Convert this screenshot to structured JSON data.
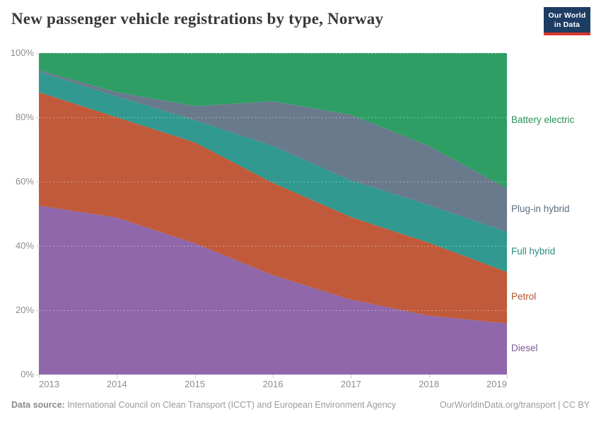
{
  "header": {
    "title": "New passenger vehicle registrations by type, Norway",
    "logo": {
      "line1": "Our World",
      "line2": "in Data",
      "bg_color": "#1d3d63",
      "bar_color": "#d8352b"
    }
  },
  "chart_data": {
    "type": "area",
    "stacked": true,
    "title": "New passenger vehicle registrations by type, Norway",
    "x": [
      2013,
      2014,
      2015,
      2016,
      2017,
      2018,
      2019
    ],
    "series": [
      {
        "name": "Diesel",
        "color": "#8f67aa",
        "label_color": "#7d5a96",
        "values": [
          52.5,
          48.8,
          40.8,
          30.9,
          23.3,
          18.3,
          15.9
        ]
      },
      {
        "name": "Petrol",
        "color": "#c05a3a",
        "label_color": "#b0502c",
        "values": [
          35.3,
          31.2,
          31.4,
          28.7,
          25.7,
          22.7,
          16.0
        ]
      },
      {
        "name": "Full hybrid",
        "color": "#31998f",
        "label_color": "#2a8c82",
        "values": [
          6.4,
          6.5,
          6.9,
          11.5,
          11.4,
          11.7,
          12.4
        ]
      },
      {
        "name": "Plug-in hybrid",
        "color": "#697a8d",
        "label_color": "#5d6e82",
        "values": [
          0.5,
          1.3,
          4.4,
          13.9,
          20.4,
          18.4,
          13.6
        ]
      },
      {
        "name": "Battery electric",
        "color": "#2f9e64",
        "label_color": "#2a9058",
        "values": [
          5.3,
          12.2,
          16.5,
          15.0,
          19.2,
          28.9,
          42.1
        ]
      }
    ],
    "ylim": [
      0,
      100
    ],
    "yticks": [
      {
        "value": 0,
        "label": "0%"
      },
      {
        "value": 20,
        "label": "20%"
      },
      {
        "value": 40,
        "label": "40%"
      },
      {
        "value": 60,
        "label": "60%"
      },
      {
        "value": 80,
        "label": "80%"
      },
      {
        "value": 100,
        "label": "100%"
      }
    ],
    "grid": "dashed-light-on-areas",
    "legend_position": "right"
  },
  "footer": {
    "source_label": "Data source:",
    "source_text": " International Council on Clean Transport (ICCT) and European Environment Agency",
    "link": "OurWorldinData.org/transport",
    "separator": " | ",
    "license": "CC BY"
  }
}
